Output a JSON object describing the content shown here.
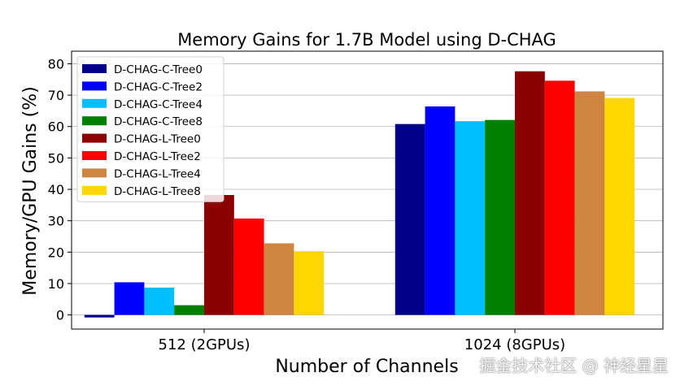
{
  "chart_data": {
    "type": "bar",
    "title": "Memory Gains for 1.7B Model using D-CHAG",
    "xlabel": "Number of Channels",
    "ylabel": "Memory/GPU Gains (%)",
    "categories": [
      "512 (2GPUs)",
      "1024 (8GPUs)"
    ],
    "ylim": [
      -4.5,
      84
    ],
    "yticks": [
      0,
      10,
      20,
      30,
      40,
      50,
      60,
      70,
      80
    ],
    "grid": "horizontal",
    "legend_position": "upper-left",
    "series": [
      {
        "name": "D-CHAG-C-Tree0",
        "color": "#00008b",
        "values": [
          -0.8,
          60.8
        ]
      },
      {
        "name": "D-CHAG-C-Tree2",
        "color": "#0000ff",
        "values": [
          10.4,
          66.4
        ]
      },
      {
        "name": "D-CHAG-C-Tree4",
        "color": "#00bfff",
        "values": [
          8.7,
          61.7
        ]
      },
      {
        "name": "D-CHAG-C-Tree8",
        "color": "#008000",
        "values": [
          3.1,
          62.1
        ]
      },
      {
        "name": "D-CHAG-L-Tree0",
        "color": "#8b0000",
        "values": [
          38.2,
          77.6
        ]
      },
      {
        "name": "D-CHAG-L-Tree2",
        "color": "#ff0000",
        "values": [
          30.7,
          74.6
        ]
      },
      {
        "name": "D-CHAG-L-Tree4",
        "color": "#cd853f",
        "values": [
          22.8,
          71.2
        ]
      },
      {
        "name": "D-CHAG-L-Tree8",
        "color": "#ffd700",
        "values": [
          20.3,
          69.1
        ]
      }
    ]
  },
  "watermark": "掘金技术社区 @ 神经星星"
}
